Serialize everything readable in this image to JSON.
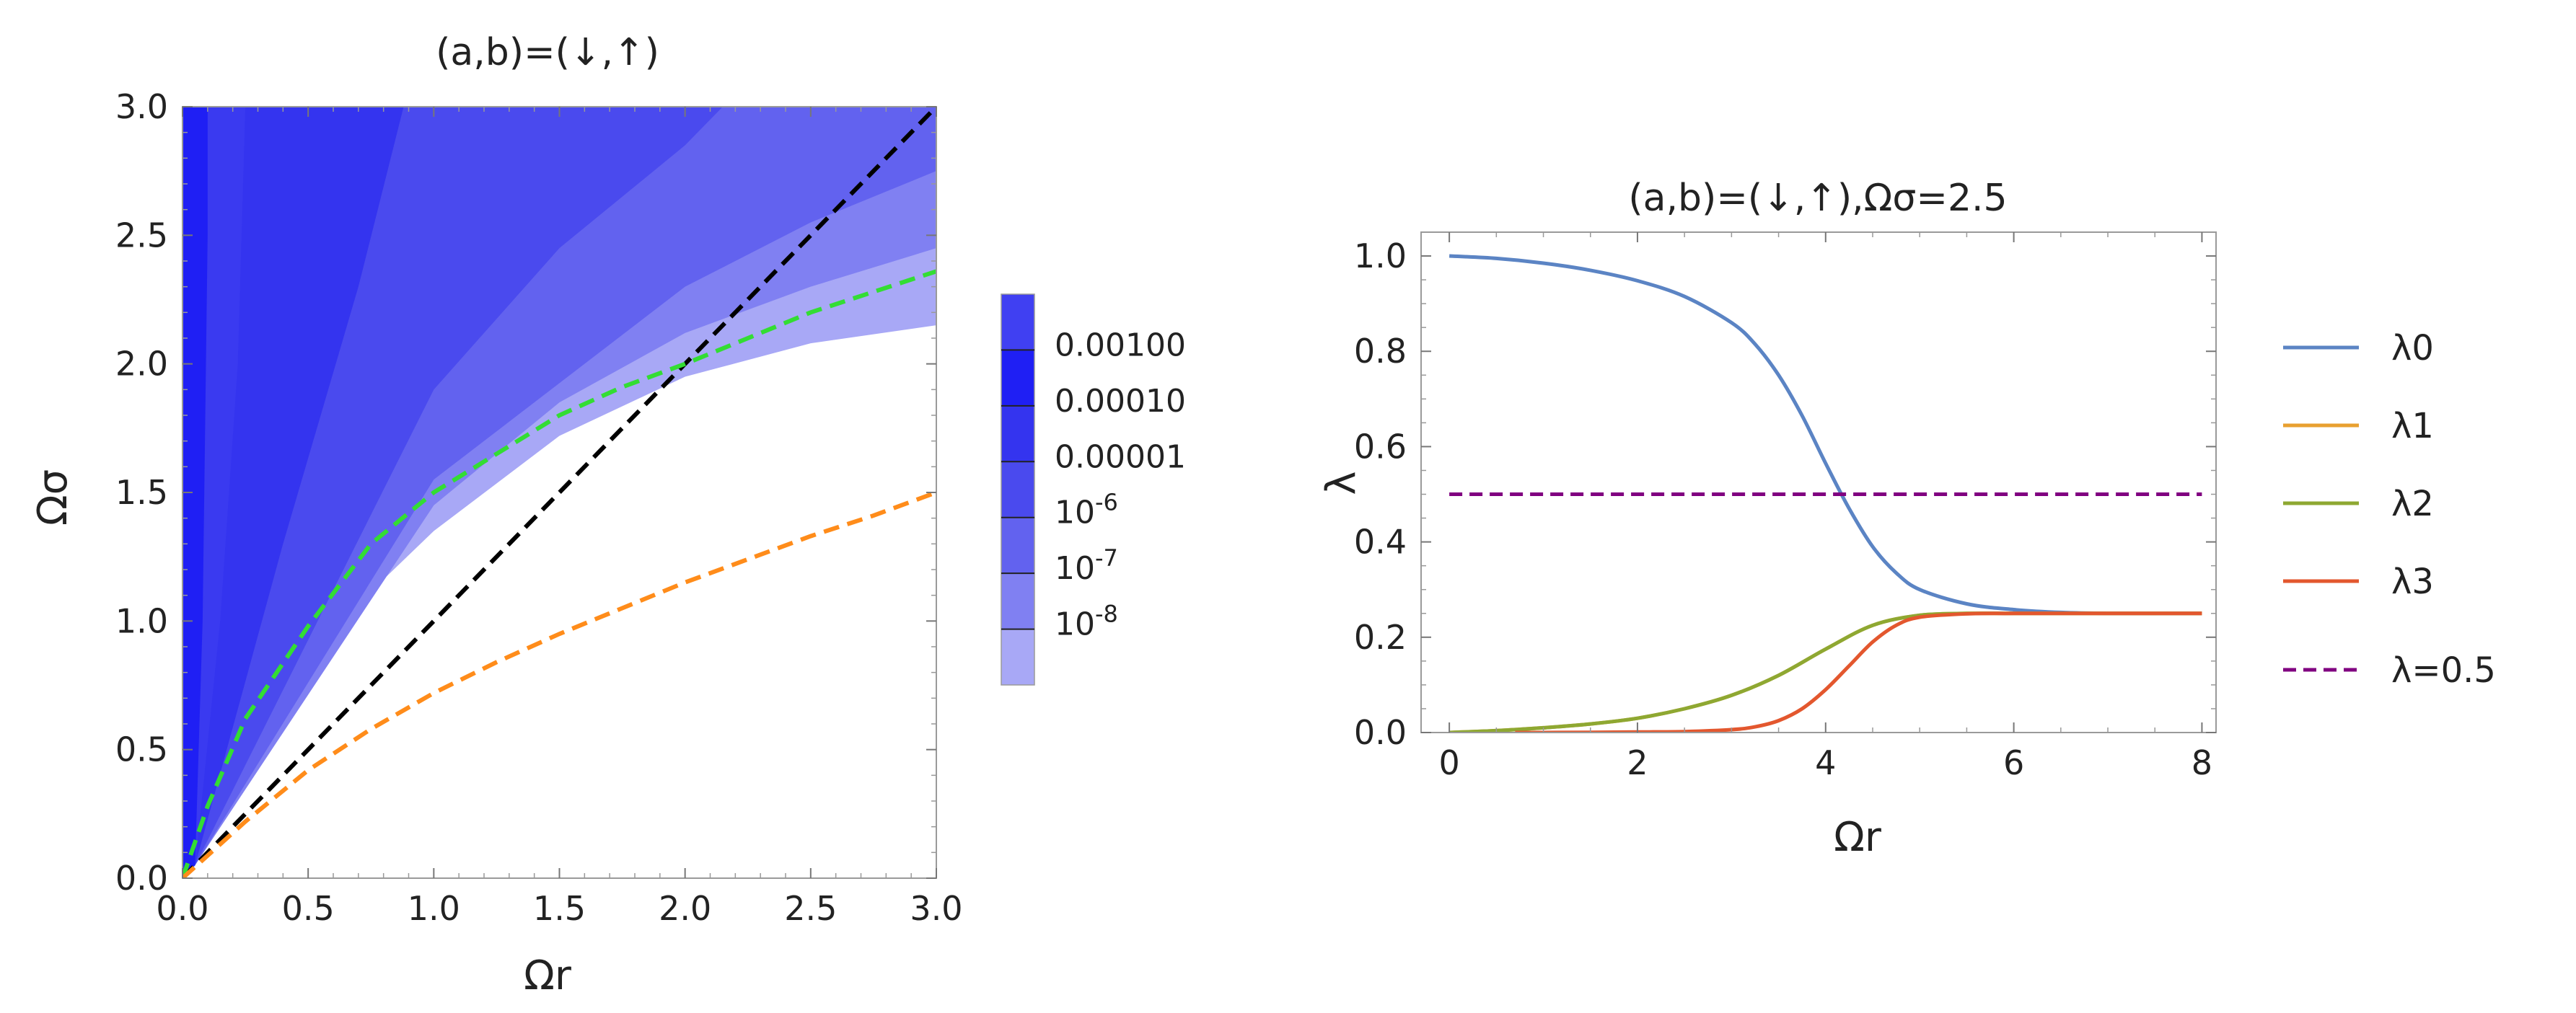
{
  "chart_data": [
    {
      "type": "contour",
      "title": "(a,b)=(↓,↑)",
      "xlabel": "Ωr",
      "ylabel": "Ωσ",
      "xlim": [
        0,
        3
      ],
      "ylim": [
        0,
        3
      ],
      "xticks": [
        "0.0",
        "0.5",
        "1.0",
        "1.5",
        "2.0",
        "2.5",
        "3.0"
      ],
      "yticks": [
        "0.0",
        "0.5",
        "1.0",
        "1.5",
        "2.0",
        "2.5",
        "3.0"
      ],
      "colorbar": {
        "levels": [
          "0.00100",
          "0.00010",
          "0.00001",
          "10^-6",
          "10^-7",
          "10^-8"
        ],
        "colors": [
          "#4040f2",
          "#1f1ff4",
          "#3434ef",
          "#4a4aee",
          "#6262ef",
          "#8080f2",
          "#a8a8f6"
        ]
      },
      "regions": [
        {
          "color": "#a8a8f6",
          "boundary": [
            [
              0.05,
              0.05
            ],
            [
              0.5,
              0.88
            ],
            [
              1.0,
              1.35
            ],
            [
              1.5,
              1.72
            ],
            [
              2.0,
              1.95
            ],
            [
              2.5,
              2.08
            ],
            [
              3.0,
              2.15
            ]
          ]
        },
        {
          "color": "#8080f2",
          "boundary": [
            [
              0.05,
              0.05
            ],
            [
              1.0,
              1.45
            ],
            [
              1.5,
              1.85
            ],
            [
              2.0,
              2.12
            ],
            [
              2.5,
              2.3
            ],
            [
              3.0,
              2.45
            ]
          ]
        },
        {
          "color": "#6262ef",
          "boundary": [
            [
              0.05,
              0.05
            ],
            [
              1.0,
              1.55
            ],
            [
              2.0,
              2.3
            ],
            [
              2.5,
              2.55
            ],
            [
              3.0,
              2.75
            ]
          ]
        },
        {
          "color": "#4a4aee",
          "boundary": [
            [
              0.05,
              0.05
            ],
            [
              1.0,
              1.9
            ],
            [
              1.5,
              2.45
            ],
            [
              2.0,
              2.85
            ],
            [
              2.15,
              3.0
            ]
          ]
        },
        {
          "color": "#3434ef",
          "boundary": [
            [
              0.05,
              0.05
            ],
            [
              0.4,
              1.3
            ],
            [
              0.7,
              2.3
            ],
            [
              0.88,
              3.0
            ]
          ]
        },
        {
          "color": "#3a3af0",
          "boundary": [
            [
              0.05,
              0.05
            ],
            [
              0.15,
              1.0
            ],
            [
              0.22,
              2.0
            ],
            [
              0.25,
              3.0
            ]
          ]
        },
        {
          "color": "#1f1ff4",
          "boundary": [
            [
              0.05,
              0.05
            ],
            [
              0.08,
              1.0
            ],
            [
              0.1,
              2.5
            ],
            [
              0.1,
              3.0
            ]
          ]
        }
      ],
      "lines": [
        {
          "color": "#000000",
          "style": "dashed",
          "x": [
            0.0,
            3.0
          ],
          "y": [
            0.0,
            3.0
          ]
        },
        {
          "color": "#33dd33",
          "style": "dashed",
          "x": [
            0.0,
            0.1,
            0.25,
            0.5,
            0.75,
            1.0,
            1.25,
            1.5,
            1.75,
            2.0,
            2.25,
            2.5,
            2.75,
            3.0
          ],
          "y": [
            0.0,
            0.28,
            0.62,
            0.98,
            1.3,
            1.5,
            1.65,
            1.8,
            1.91,
            2.0,
            2.1,
            2.2,
            2.28,
            2.36
          ]
        },
        {
          "color": "#ff8c1a",
          "style": "dashed",
          "x": [
            0.0,
            0.25,
            0.5,
            0.75,
            1.0,
            1.25,
            1.5,
            1.75,
            2.0,
            2.25,
            2.5,
            2.75,
            3.0
          ],
          "y": [
            0.0,
            0.22,
            0.42,
            0.58,
            0.72,
            0.84,
            0.95,
            1.05,
            1.15,
            1.24,
            1.33,
            1.41,
            1.5
          ]
        }
      ]
    },
    {
      "type": "line",
      "title": "(a,b)=(↓,↑),Ωσ=2.5",
      "xlabel": "Ωr",
      "ylabel": "λ",
      "xlim": [
        -0.3,
        8.15
      ],
      "ylim": [
        0,
        1.05
      ],
      "xticks": [
        "0",
        "2",
        "4",
        "6",
        "8"
      ],
      "yticks": [
        "0.0",
        "0.2",
        "0.4",
        "0.6",
        "0.8",
        "1.0"
      ],
      "legend_position": "right",
      "series": [
        {
          "name": "λ0",
          "color": "#5b84c4",
          "style": "solid",
          "x": [
            0,
            0.5,
            1,
            1.5,
            2,
            2.5,
            3,
            3.25,
            3.5,
            3.75,
            4,
            4.25,
            4.5,
            4.75,
            5,
            5.5,
            6,
            6.5,
            7,
            8
          ],
          "y": [
            1.0,
            0.995,
            0.985,
            0.97,
            0.948,
            0.915,
            0.86,
            0.815,
            0.75,
            0.665,
            0.565,
            0.47,
            0.39,
            0.335,
            0.3,
            0.27,
            0.258,
            0.252,
            0.25,
            0.25
          ]
        },
        {
          "name": "λ1",
          "color": "#e8a030",
          "style": "solid",
          "x": [
            0,
            0.5,
            1,
            1.5,
            2,
            2.5,
            3,
            3.5,
            4,
            4.5,
            5,
            5.5,
            6,
            7,
            8
          ],
          "y": [
            0.0,
            0.004,
            0.01,
            0.018,
            0.03,
            0.05,
            0.078,
            0.12,
            0.175,
            0.225,
            0.246,
            0.25,
            0.25,
            0.25,
            0.25
          ]
        },
        {
          "name": "λ2",
          "color": "#8ea832",
          "style": "solid",
          "x": [
            0,
            0.5,
            1,
            1.5,
            2,
            2.5,
            3,
            3.5,
            4,
            4.5,
            5,
            5.5,
            6,
            7,
            8
          ],
          "y": [
            0.0,
            0.004,
            0.01,
            0.018,
            0.03,
            0.05,
            0.078,
            0.12,
            0.175,
            0.225,
            0.246,
            0.25,
            0.25,
            0.25,
            0.25
          ]
        },
        {
          "name": "λ3",
          "color": "#e3572e",
          "style": "solid",
          "x": [
            0.7,
            1,
            2,
            2.5,
            3,
            3.25,
            3.5,
            3.75,
            4,
            4.25,
            4.5,
            4.75,
            5,
            5.5,
            6,
            7,
            8
          ],
          "y": [
            0.0,
            0.0,
            0.001,
            0.002,
            0.006,
            0.012,
            0.025,
            0.05,
            0.09,
            0.14,
            0.19,
            0.225,
            0.242,
            0.249,
            0.25,
            0.25,
            0.25
          ]
        },
        {
          "name": "λ=0.5",
          "color": "#800080",
          "style": "dashed",
          "x": [
            0,
            8
          ],
          "y": [
            0.5,
            0.5
          ]
        }
      ]
    }
  ]
}
